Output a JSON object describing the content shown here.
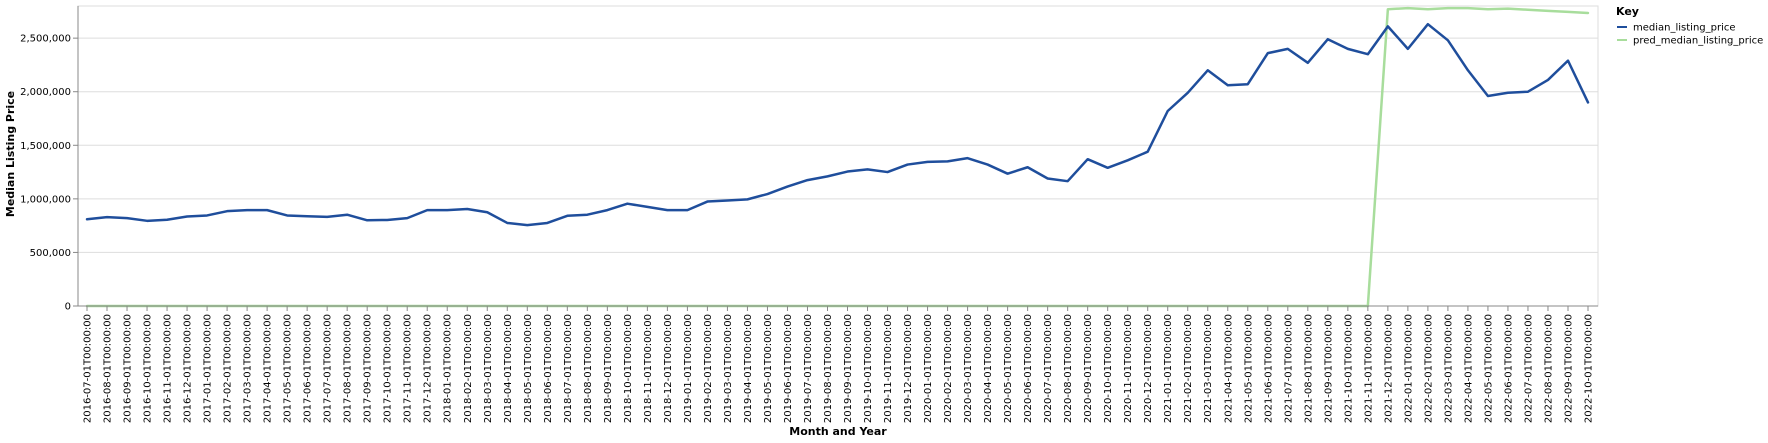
{
  "chart_data": {
    "type": "line",
    "xlabel": "Month and Year",
    "ylabel": "Median Listing Price",
    "ylim": [
      0,
      2800000
    ],
    "yticks": [
      0,
      500000,
      1000000,
      1500000,
      2000000,
      2500000
    ],
    "grid": true,
    "legend": {
      "title": "Key",
      "placement": "top-right"
    },
    "x": [
      "2016-07-01T00:00:00",
      "2016-08-01T00:00:00",
      "2016-09-01T00:00:00",
      "2016-10-01T00:00:00",
      "2016-11-01T00:00:00",
      "2016-12-01T00:00:00",
      "2017-01-01T00:00:00",
      "2017-02-01T00:00:00",
      "2017-03-01T00:00:00",
      "2017-04-01T00:00:00",
      "2017-05-01T00:00:00",
      "2017-06-01T00:00:00",
      "2017-07-01T00:00:00",
      "2017-08-01T00:00:00",
      "2017-09-01T00:00:00",
      "2017-10-01T00:00:00",
      "2017-11-01T00:00:00",
      "2017-12-01T00:00:00",
      "2018-01-01T00:00:00",
      "2018-02-01T00:00:00",
      "2018-03-01T00:00:00",
      "2018-04-01T00:00:00",
      "2018-05-01T00:00:00",
      "2018-06-01T00:00:00",
      "2018-07-01T00:00:00",
      "2018-08-01T00:00:00",
      "2018-09-01T00:00:00",
      "2018-10-01T00:00:00",
      "2018-11-01T00:00:00",
      "2018-12-01T00:00:00",
      "2019-01-01T00:00:00",
      "2019-02-01T00:00:00",
      "2019-03-01T00:00:00",
      "2019-04-01T00:00:00",
      "2019-05-01T00:00:00",
      "2019-06-01T00:00:00",
      "2019-07-01T00:00:00",
      "2019-08-01T00:00:00",
      "2019-09-01T00:00:00",
      "2019-10-01T00:00:00",
      "2019-11-01T00:00:00",
      "2019-12-01T00:00:00",
      "2020-01-01T00:00:00",
      "2020-02-01T00:00:00",
      "2020-03-01T00:00:00",
      "2020-04-01T00:00:00",
      "2020-05-01T00:00:00",
      "2020-06-01T00:00:00",
      "2020-07-01T00:00:00",
      "2020-08-01T00:00:00",
      "2020-09-01T00:00:00",
      "2020-10-01T00:00:00",
      "2020-11-01T00:00:00",
      "2020-12-01T00:00:00",
      "2021-01-01T00:00:00",
      "2021-02-01T00:00:00",
      "2021-03-01T00:00:00",
      "2021-04-01T00:00:00",
      "2021-05-01T00:00:00",
      "2021-06-01T00:00:00",
      "2021-07-01T00:00:00",
      "2021-08-01T00:00:00",
      "2021-09-01T00:00:00",
      "2021-10-01T00:00:00",
      "2021-11-01T00:00:00",
      "2021-12-01T00:00:00",
      "2022-01-01T00:00:00",
      "2022-02-01T00:00:00",
      "2022-03-01T00:00:00",
      "2022-04-01T00:00:00",
      "2022-05-01T00:00:00",
      "2022-06-01T00:00:00",
      "2022-07-01T00:00:00",
      "2022-08-01T00:00:00",
      "2022-09-01T00:00:00",
      "2022-10-01T00:00:00"
    ],
    "series": [
      {
        "name": "median_listing_price",
        "color": "#1f4e9c",
        "values": [
          810000,
          830000,
          820000,
          795000,
          805000,
          835000,
          845000,
          885000,
          895000,
          895000,
          845000,
          838000,
          832000,
          852000,
          800000,
          803000,
          820000,
          895000,
          895000,
          905000,
          875000,
          775000,
          755000,
          775000,
          842000,
          852000,
          895000,
          955000,
          925000,
          895000,
          895000,
          975000,
          985000,
          995000,
          1045000,
          1115000,
          1175000,
          1210000,
          1255000,
          1275000,
          1250000,
          1320000,
          1345000,
          1350000,
          1380000,
          1320000,
          1235000,
          1295000,
          1190000,
          1165000,
          1370000,
          1290000,
          1360000,
          1440000,
          1820000,
          1990000,
          2200000,
          2060000,
          2070000,
          2360000,
          2400000,
          2270000,
          2490000,
          2400000,
          2350000,
          2610000,
          2400000,
          2630000,
          2480000,
          2200000,
          1960000,
          1990000,
          2000000,
          2110000,
          2290000,
          1900000
        ]
      },
      {
        "name": "pred_median_listing_price",
        "color": "#a8dd9c",
        "values": [
          0,
          0,
          0,
          0,
          0,
          0,
          0,
          0,
          0,
          0,
          0,
          0,
          0,
          0,
          0,
          0,
          0,
          0,
          0,
          0,
          0,
          0,
          0,
          0,
          0,
          0,
          0,
          0,
          0,
          0,
          0,
          0,
          0,
          0,
          0,
          0,
          0,
          0,
          0,
          0,
          0,
          0,
          0,
          0,
          0,
          0,
          0,
          0,
          0,
          0,
          0,
          0,
          0,
          0,
          0,
          0,
          0,
          0,
          0,
          0,
          0,
          0,
          0,
          0,
          0,
          2770000,
          2780000,
          2770000,
          2780000,
          2780000,
          2770000,
          2775000,
          2765000,
          2755000,
          2745000,
          2735000
        ]
      }
    ]
  }
}
